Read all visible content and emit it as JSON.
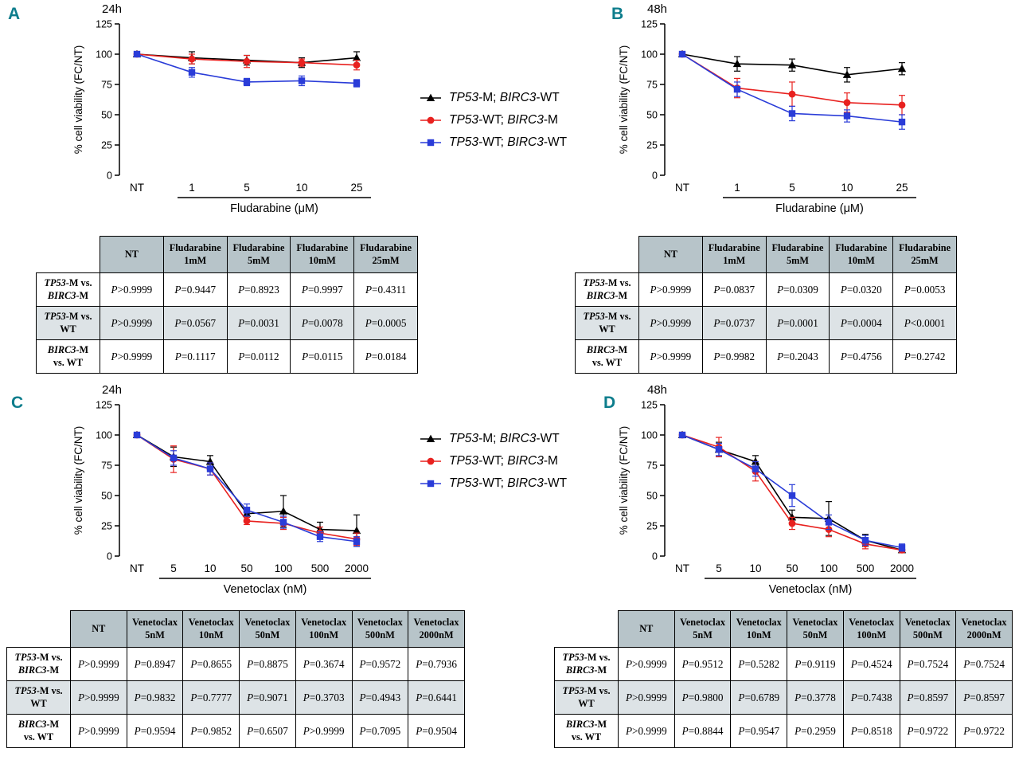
{
  "colors": {
    "series_black": "#000000",
    "series_red": "#e8211f",
    "series_blue": "#2a3cd8",
    "table_header_bg": "#b7c4c9",
    "table_alt_row_bg": "#dde3e6",
    "panel_letter": "#0d7d8c"
  },
  "legend": {
    "items": [
      {
        "label": "TP53-M; BIRC3-WT",
        "marker": "triangle",
        "color": "#000000"
      },
      {
        "label": "TP53-WT; BIRC3-M",
        "marker": "circle",
        "color": "#e8211f"
      },
      {
        "label": "TP53-WT; BIRC3-WT",
        "marker": "square",
        "color": "#2a3cd8"
      }
    ]
  },
  "chart_data": [
    {
      "type": "line",
      "panel": "A",
      "title": "24h",
      "categories": [
        "NT",
        "1",
        "5",
        "10",
        "25"
      ],
      "xlabel": "Fludarabine (μM)",
      "ylabel": "% cell viability (FC/NT)",
      "ylim": [
        0,
        125
      ],
      "yticks": [
        0,
        25,
        50,
        75,
        100,
        125
      ],
      "grid": false,
      "series": [
        {
          "name": "TP53-M; BIRC3-WT",
          "marker": "triangle",
          "color": "#000000",
          "values": [
            100,
            97,
            95,
            93,
            97
          ],
          "errors": [
            1,
            5,
            4,
            4,
            5
          ]
        },
        {
          "name": "TP53-WT; BIRC3-M",
          "marker": "circle",
          "color": "#e8211f",
          "values": [
            100,
            96,
            94,
            93,
            91
          ],
          "errors": [
            1,
            4,
            5,
            3,
            4
          ]
        },
        {
          "name": "TP53-WT; BIRC3-WT",
          "marker": "square",
          "color": "#2a3cd8",
          "values": [
            100,
            85,
            77,
            78,
            76
          ],
          "errors": [
            1,
            4,
            3,
            4,
            3
          ]
        }
      ]
    },
    {
      "type": "line",
      "panel": "B",
      "title": "48h",
      "categories": [
        "NT",
        "1",
        "5",
        "10",
        "25"
      ],
      "xlabel": "Fludarabine (μM)",
      "ylabel": "% cell viability (FC/NT)",
      "ylim": [
        0,
        125
      ],
      "yticks": [
        0,
        25,
        50,
        75,
        100,
        125
      ],
      "grid": false,
      "series": [
        {
          "name": "TP53-M; BIRC3-WT",
          "marker": "triangle",
          "color": "#000000",
          "values": [
            100,
            92,
            91,
            83,
            88
          ],
          "errors": [
            1,
            6,
            5,
            6,
            5
          ]
        },
        {
          "name": "TP53-WT; BIRC3-M",
          "marker": "circle",
          "color": "#e8211f",
          "values": [
            100,
            72,
            67,
            60,
            58
          ],
          "errors": [
            1,
            8,
            10,
            8,
            8
          ]
        },
        {
          "name": "TP53-WT; BIRC3-WT",
          "marker": "square",
          "color": "#2a3cd8",
          "values": [
            100,
            71,
            51,
            49,
            44
          ],
          "errors": [
            1,
            6,
            6,
            5,
            6
          ]
        }
      ]
    },
    {
      "type": "line",
      "panel": "C",
      "title": "24h",
      "categories": [
        "NT",
        "5",
        "10",
        "50",
        "100",
        "500",
        "2000"
      ],
      "xlabel": "Venetoclax (nM)",
      "ylabel": "% cell viability (FC/NT)",
      "ylim": [
        0,
        125
      ],
      "yticks": [
        0,
        25,
        50,
        75,
        100,
        125
      ],
      "grid": false,
      "series": [
        {
          "name": "TP53-M; BIRC3-WT",
          "marker": "triangle",
          "color": "#000000",
          "values": [
            100,
            82,
            78,
            35,
            37,
            22,
            21
          ],
          "errors": [
            2,
            8,
            5,
            5,
            13,
            6,
            13
          ]
        },
        {
          "name": "TP53-WT; BIRC3-M",
          "marker": "circle",
          "color": "#e8211f",
          "values": [
            100,
            80,
            72,
            29,
            27,
            19,
            14
          ],
          "errors": [
            2,
            11,
            5,
            3,
            5,
            5,
            5
          ]
        },
        {
          "name": "TP53-WT; BIRC3-WT",
          "marker": "square",
          "color": "#2a3cd8",
          "values": [
            100,
            81,
            72,
            38,
            28,
            16,
            12
          ],
          "errors": [
            2,
            6,
            5,
            5,
            5,
            4,
            4
          ]
        }
      ]
    },
    {
      "type": "line",
      "panel": "D",
      "title": "48h",
      "categories": [
        "NT",
        "5",
        "10",
        "50",
        "100",
        "500",
        "2000"
      ],
      "xlabel": "Venetoclax (nM)",
      "ylabel": "% cell viability (FC/NT)",
      "ylim": [
        0,
        125
      ],
      "yticks": [
        0,
        25,
        50,
        75,
        100,
        125
      ],
      "grid": false,
      "series": [
        {
          "name": "TP53-M; BIRC3-WT",
          "marker": "triangle",
          "color": "#000000",
          "values": [
            100,
            88,
            78,
            32,
            31,
            13,
            5
          ],
          "errors": [
            2,
            6,
            5,
            6,
            14,
            5,
            2
          ]
        },
        {
          "name": "TP53-WT; BIRC3-M",
          "marker": "circle",
          "color": "#e8211f",
          "values": [
            100,
            90,
            70,
            27,
            22,
            10,
            5
          ],
          "errors": [
            2,
            8,
            8,
            5,
            6,
            4,
            2
          ]
        },
        {
          "name": "TP53-WT; BIRC3-WT",
          "marker": "square",
          "color": "#2a3cd8",
          "values": [
            100,
            88,
            72,
            50,
            28,
            13,
            7
          ],
          "errors": [
            2,
            5,
            6,
            9,
            6,
            4,
            3
          ]
        }
      ]
    }
  ],
  "panels": [
    {
      "letter": "A",
      "time_label": "24h",
      "table": {
        "col_headers": [
          "NT",
          "Fludarabine\n1mM",
          "Fludarabine\n5mM",
          "Fludarabine\n10mM",
          "Fludarabine\n25mM"
        ],
        "rows": [
          {
            "label": "TP53-M vs.\nBIRC3-M",
            "cells": [
              "P>0.9999",
              "P=0.9447",
              "P=0.8923",
              "P=0.9997",
              "P=0.4311"
            ]
          },
          {
            "label": "TP53-M vs.\nWT",
            "cells": [
              "P>0.9999",
              "P=0.0567",
              "P=0.0031",
              "P=0.0078",
              "P=0.0005"
            ]
          },
          {
            "label": "BIRC3-M\nvs. WT",
            "cells": [
              "P>0.9999",
              "P=0.1117",
              "P=0.0112",
              "P=0.0115",
              "P=0.0184"
            ]
          }
        ]
      }
    },
    {
      "letter": "B",
      "time_label": "48h",
      "table": {
        "col_headers": [
          "NT",
          "Fludarabine\n1mM",
          "Fludarabine\n5mM",
          "Fludarabine\n10mM",
          "Fludarabine\n25mM"
        ],
        "rows": [
          {
            "label": "TP53-M vs.\nBIRC3-M",
            "cells": [
              "P>0.9999",
              "P=0.0837",
              "P=0.0309",
              "P=0.0320",
              "P=0.0053"
            ]
          },
          {
            "label": "TP53-M vs.\nWT",
            "cells": [
              "P>0.9999",
              "P=0.0737",
              "P=0.0001",
              "P=0.0004",
              "P<0.0001"
            ]
          },
          {
            "label": "BIRC3-M\nvs. WT",
            "cells": [
              "P>0.9999",
              "P=0.9982",
              "P=0.2043",
              "P=0.4756",
              "P=0.2742"
            ]
          }
        ]
      }
    },
    {
      "letter": "C",
      "time_label": "24h",
      "table": {
        "col_headers": [
          "NT",
          "Venetoclax\n5nM",
          "Venetoclax\n10nM",
          "Venetoclax\n50nM",
          "Venetoclax\n100nM",
          "Venetoclax\n500nM",
          "Venetoclax\n2000nM"
        ],
        "rows": [
          {
            "label": "TP53-M vs.\nBIRC3-M",
            "cells": [
              "P>0.9999",
              "P=0.8947",
              "P=0.8655",
              "P=0.8875",
              "P=0.3674",
              "P=0.9572",
              "P=0.7936"
            ]
          },
          {
            "label": "TP53-M vs.\nWT",
            "cells": [
              "P>0.9999",
              "P=0.9832",
              "P=0.7777",
              "P=0.9071",
              "P=0.3703",
              "P=0.4943",
              "P=0.6441"
            ]
          },
          {
            "label": "BIRC3-M\nvs. WT",
            "cells": [
              "P>0.9999",
              "P=0.9594",
              "P=0.9852",
              "P=0.6507",
              "P>0.9999",
              "P=0.7095",
              "P=0.9504"
            ]
          }
        ]
      }
    },
    {
      "letter": "D",
      "time_label": "48h",
      "table": {
        "col_headers": [
          "NT",
          "Venetoclax\n5nM",
          "Venetoclax\n10nM",
          "Venetoclax\n50nM",
          "Venetoclax\n100nM",
          "Venetoclax\n500nM",
          "Venetoclax\n2000nM"
        ],
        "rows": [
          {
            "label": "TP53-M vs.\nBIRC3-M",
            "cells": [
              "P>0.9999",
              "P=0.9512",
              "P=0.5282",
              "P=0.9119",
              "P=0.4524",
              "P=0.7524",
              "P=0.7524"
            ]
          },
          {
            "label": "TP53-M vs.\nWT",
            "cells": [
              "P>0.9999",
              "P=0.9800",
              "P=0.6789",
              "P=0.3778",
              "P=0.7438",
              "P=0.8597",
              "P=0.8597"
            ]
          },
          {
            "label": "BIRC3-M\nvs. WT",
            "cells": [
              "P>0.9999",
              "P=0.8844",
              "P=0.9547",
              "P=0.2959",
              "P=0.8518",
              "P=0.9722",
              "P=0.9722"
            ]
          }
        ]
      }
    }
  ]
}
